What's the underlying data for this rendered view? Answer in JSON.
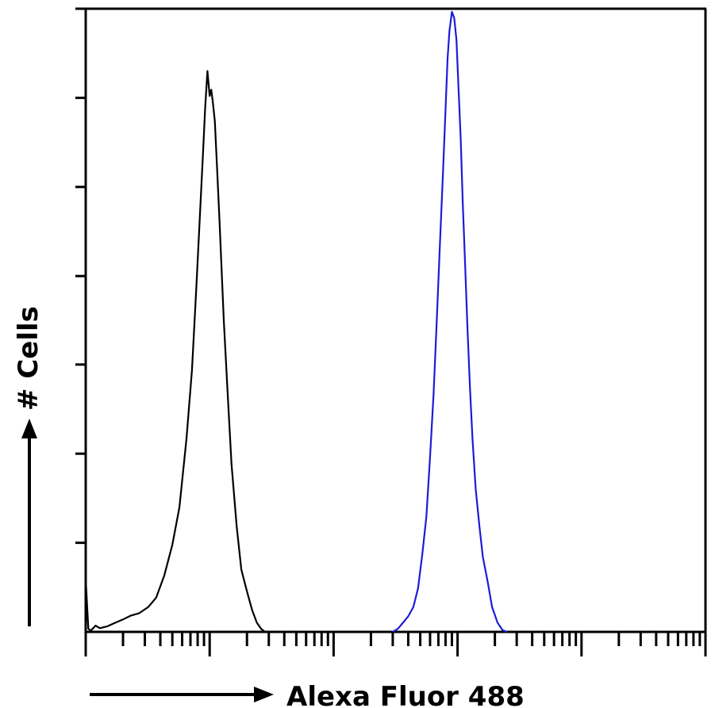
{
  "chart_data": {
    "type": "line",
    "xlabel": "Alexa Fluor 488",
    "ylabel": "# Cells",
    "x_scale": "log",
    "xlim": [
      1,
      100000
    ],
    "ylim": [
      0,
      100
    ],
    "x_decades": [
      1,
      10,
      100,
      1000,
      10000,
      100000
    ],
    "y_ticks": [
      0,
      14.3,
      28.6,
      42.9,
      57.1,
      71.4,
      85.7,
      100
    ],
    "grid": false,
    "legend": "none",
    "series": [
      {
        "color": "#000000",
        "x": [
          1.0,
          1.05,
          1.1,
          1.2,
          1.3,
          1.5,
          1.7,
          2.0,
          2.3,
          2.7,
          3.2,
          3.7,
          4.3,
          5.0,
          5.7,
          6.5,
          7.2,
          7.8,
          8.3,
          8.8,
          9.2,
          9.6,
          10.0,
          10.3,
          10.6,
          11.0,
          11.5,
          12.0,
          13.0,
          14.0,
          15.0,
          16.5,
          18.0,
          20.0,
          22.0,
          24.0,
          26.0,
          28.0
        ],
        "y": [
          8.5,
          0.5,
          0.2,
          1.0,
          0.6,
          0.9,
          1.4,
          2.0,
          2.6,
          3.0,
          4.0,
          5.5,
          9.0,
          14.0,
          20.0,
          31.0,
          42.0,
          55.0,
          66.0,
          76.0,
          84.0,
          90.0,
          86.0,
          87.0,
          85.0,
          82.0,
          74.0,
          66.0,
          50.0,
          38.0,
          27.0,
          17.0,
          10.0,
          6.5,
          3.5,
          1.5,
          0.5,
          0.0
        ]
      },
      {
        "color": "#1c1cd8",
        "x": [
          300,
          330,
          360,
          400,
          440,
          480,
          520,
          560,
          600,
          640,
          680,
          720,
          760,
          800,
          830,
          860,
          900,
          940,
          980,
          1020,
          1060,
          1100,
          1150,
          1200,
          1260,
          1320,
          1400,
          1500,
          1600,
          1750,
          1900,
          2100,
          2300,
          2500
        ],
        "y": [
          0.0,
          0.5,
          1.4,
          2.5,
          4.0,
          7.0,
          12.5,
          18.5,
          28.0,
          38.0,
          50.0,
          62.0,
          73.0,
          84.0,
          92.0,
          96.5,
          99.5,
          98.5,
          95.0,
          87.0,
          79.0,
          69.0,
          59.0,
          49.0,
          39.0,
          31.0,
          23.0,
          17.0,
          12.0,
          8.0,
          4.0,
          1.5,
          0.3,
          0.0
        ]
      }
    ]
  }
}
